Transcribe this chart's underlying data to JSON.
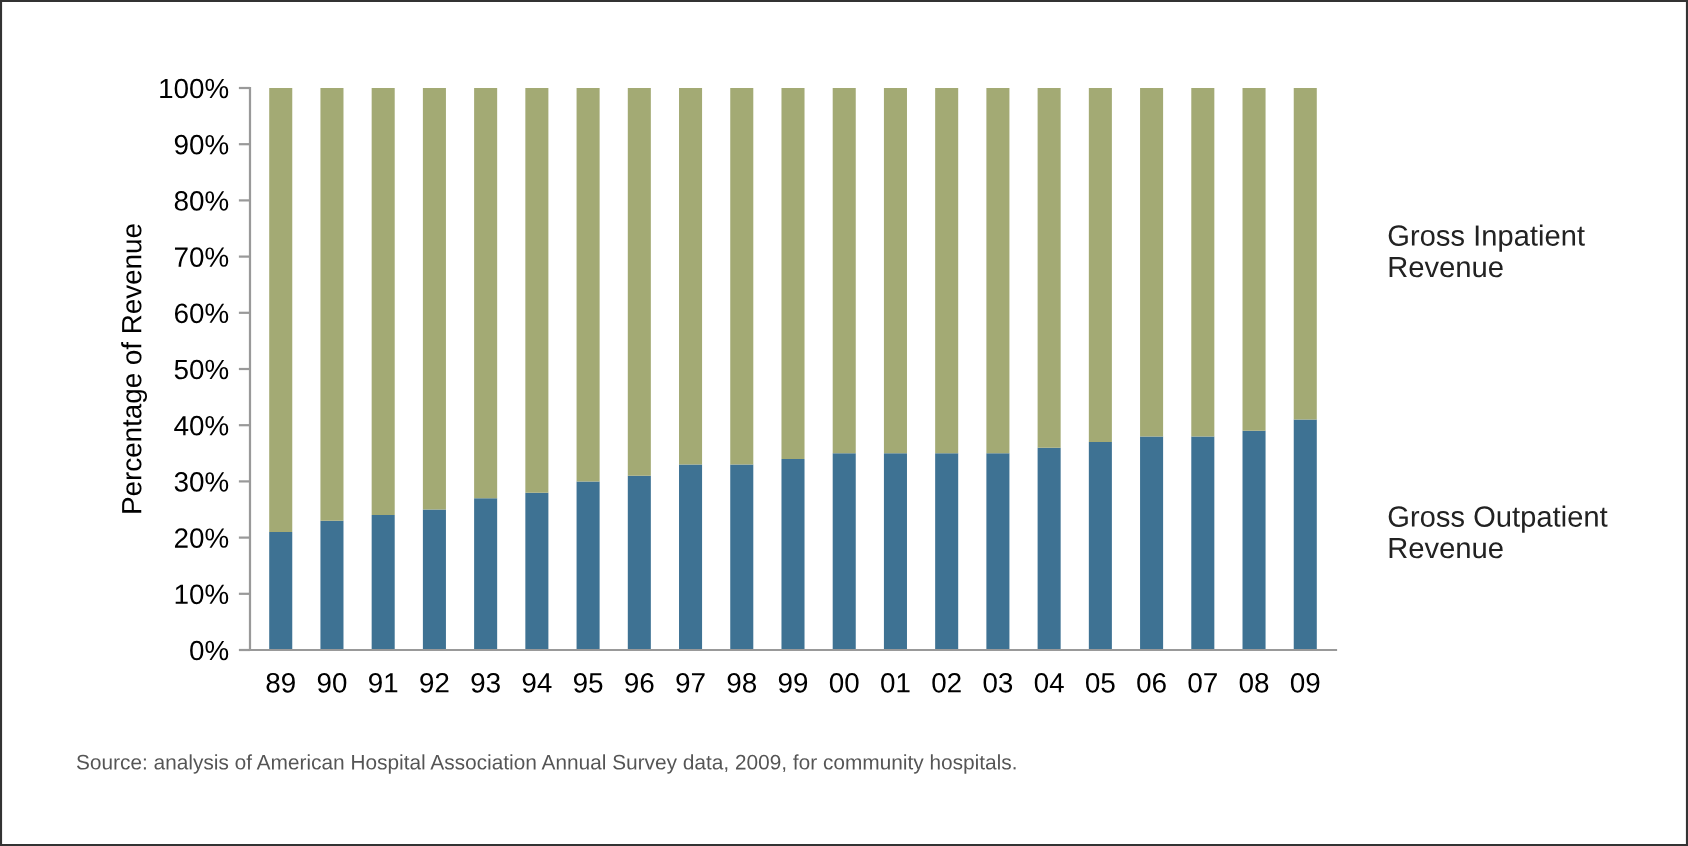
{
  "chart_data": {
    "type": "bar",
    "stacked": true,
    "ylabel": "Percentage of Revenue",
    "categories": [
      "89",
      "90",
      "91",
      "92",
      "93",
      "94",
      "95",
      "96",
      "97",
      "98",
      "99",
      "00",
      "01",
      "02",
      "03",
      "04",
      "05",
      "06",
      "07",
      "08",
      "09"
    ],
    "series": [
      {
        "name": "Gross Outpatient Revenue",
        "color": "#3e7293",
        "values": [
          21,
          23,
          24,
          25,
          27,
          28,
          30,
          31,
          33,
          33,
          34,
          35,
          35,
          35,
          35,
          36,
          37,
          38,
          38,
          39,
          41
        ]
      },
      {
        "name": "Gross Inpatient Revenue",
        "color": "#a3aa74",
        "values": [
          79,
          77,
          76,
          75,
          73,
          72,
          70,
          69,
          67,
          67,
          66,
          65,
          65,
          65,
          65,
          64,
          63,
          62,
          62,
          61,
          59
        ]
      }
    ],
    "ylim": [
      0,
      100
    ],
    "yticks": [
      {
        "value": 0,
        "label": "0%"
      },
      {
        "value": 10,
        "label": "10%"
      },
      {
        "value": 20,
        "label": "20%"
      },
      {
        "value": 30,
        "label": "30%"
      },
      {
        "value": 40,
        "label": "40%"
      },
      {
        "value": 50,
        "label": "50%"
      },
      {
        "value": 60,
        "label": "60%"
      },
      {
        "value": 70,
        "label": "70%"
      },
      {
        "value": 80,
        "label": "80%"
      },
      {
        "value": 90,
        "label": "90%"
      },
      {
        "value": 100,
        "label": "100%"
      }
    ],
    "grid": false,
    "legend": false,
    "annotations": [
      "Source: analysis of American Hospital Association Annual Survey data, 2009, for community hospitals."
    ]
  }
}
